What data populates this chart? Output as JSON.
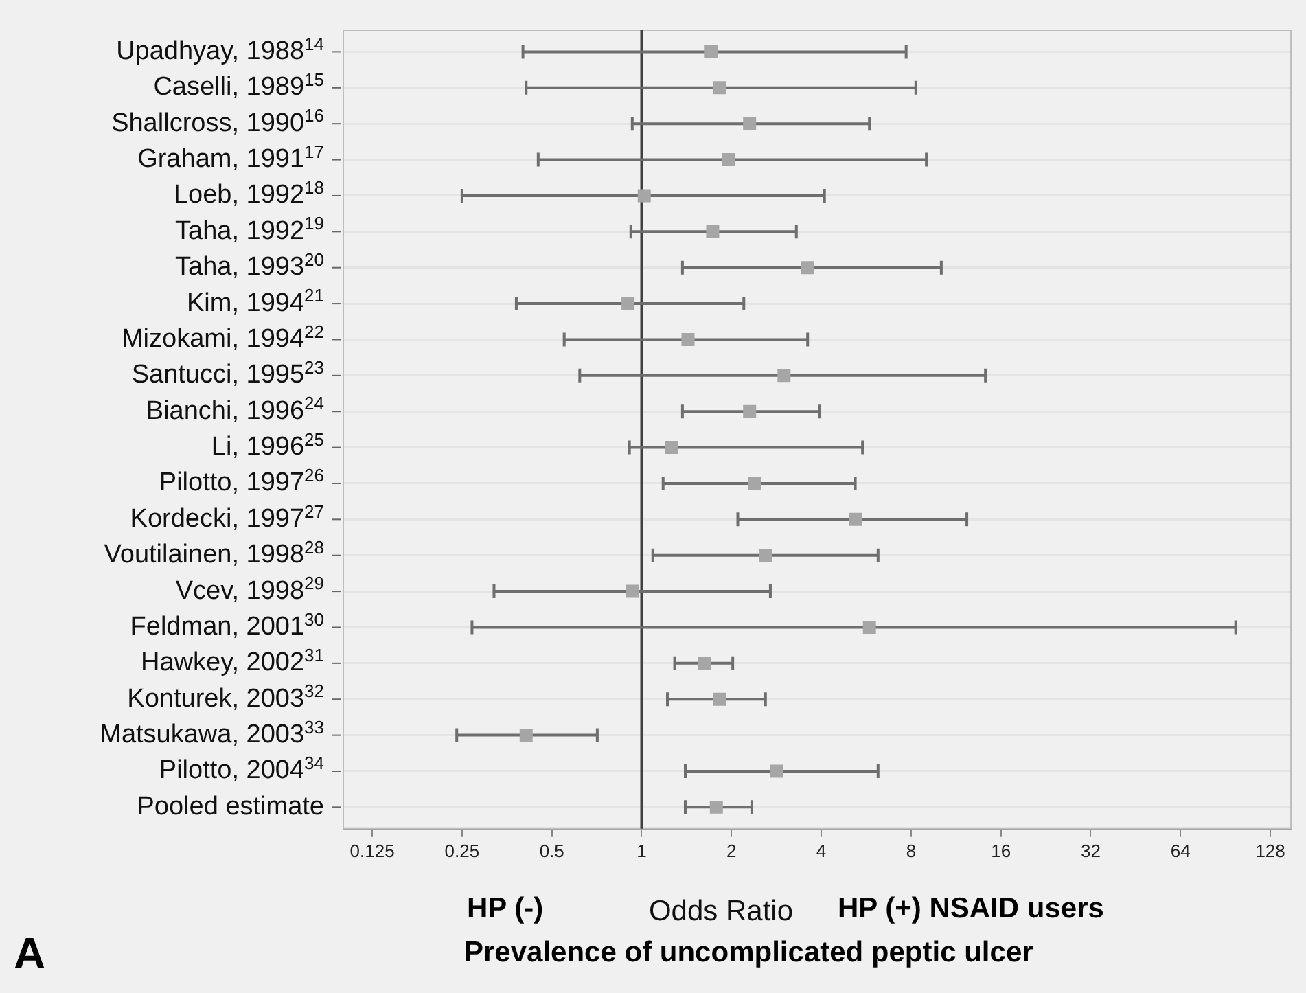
{
  "chart_data": {
    "type": "scatter",
    "orientation": "horizontal",
    "xlabel": "Odds Ratio",
    "categories": [
      "Upadhyay, 1988$^{14}$",
      "Caselli, 1989$^{15}$",
      "Shallcross, 1990$^{16}$",
      "Graham, 1991$^{17}$",
      "Loeb, 1992$^{18}$",
      "Taha, 1992$^{19}$",
      "Taha, 1993$^{20}$",
      "Kim, 1994$^{21}$",
      "Mizokami, 1994$^{22}$",
      "Santucci, 1995$^{23}$",
      "Bianchi, 1996$^{24}$",
      "Li, 1996$^{25}$",
      "Pilotto, 1997$^{26}$",
      "Kordecki, 1997$^{27}$",
      "Voutilainen, 1998$^{28}$",
      "Vcev, 1998$^{29}$",
      "Feldman, 2001$^{30}$",
      "Hawkey, 2002$^{31}$",
      "Konturek, 2003$^{32}$",
      "Matsukawa, 2003$^{33}$",
      "Pilotto, 2004$^{34}$",
      "Pooled estimate"
    ],
    "values": [
      1.71,
      1.82,
      2.3,
      1.96,
      1.02,
      1.73,
      3.6,
      0.9,
      1.43,
      3.0,
      2.3,
      1.26,
      2.39,
      5.2,
      2.6,
      0.93,
      5.8,
      1.62,
      1.82,
      0.41,
      2.83,
      1.78
    ],
    "errors": [
      [
        0.4,
        7.7
      ],
      [
        0.41,
        8.3
      ],
      [
        0.93,
        5.8
      ],
      [
        0.45,
        9.0
      ],
      [
        0.25,
        4.1
      ],
      [
        0.92,
        3.3
      ],
      [
        1.37,
        10.1
      ],
      [
        0.38,
        2.2
      ],
      [
        0.55,
        3.6
      ],
      [
        0.62,
        14.2
      ],
      [
        1.37,
        3.95
      ],
      [
        0.91,
        5.5
      ],
      [
        1.18,
        5.2
      ],
      [
        2.1,
        12.3
      ],
      [
        1.09,
        6.2
      ],
      [
        0.32,
        2.7
      ],
      [
        0.27,
        98
      ],
      [
        1.29,
        2.02
      ],
      [
        1.22,
        2.6
      ],
      [
        0.24,
        0.71
      ],
      [
        1.4,
        6.2
      ],
      [
        1.4,
        2.34
      ]
    ],
    "color": "#a6a6a6",
    "marker": "square",
    "log": "x",
    "xlim": [
      0.1,
      150
    ],
    "xticks": [
      0.125,
      0.25,
      0.5,
      1,
      2,
      4,
      8,
      16,
      32,
      64,
      128
    ],
    "grid": "y",
    "ref_lines": [
      {
        "axis": "x",
        "value": 1,
        "color": "#404040"
      }
    ],
    "annotations": [
      "HP (-)",
      "HP (+) NSAID users",
      "Prevalence of uncomplicated peptic ulcer",
      "A"
    ]
  }
}
